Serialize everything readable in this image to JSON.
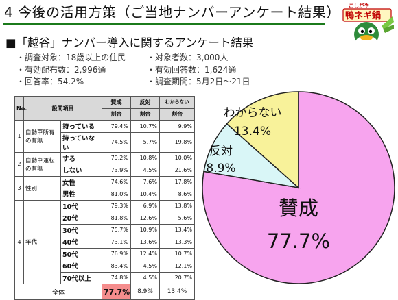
{
  "page": {
    "title": "4 今後の活用方策（ご当地ナンバーアンケート結果）",
    "subtitle": "■「越谷」ナンバー導入に関するアンケート結果",
    "logo": {
      "top_text": "こしがや",
      "main_text": "鴨ネギ鍋"
    }
  },
  "survey_info": {
    "left": [
      "調査対象：18歳以上の住民",
      "有効配布数：2,996通",
      "回答率：54.2%"
    ],
    "right": [
      "対象者数：3,000人",
      "有効回答数：1,624通",
      "調査期間：5月2日～21日"
    ]
  },
  "table": {
    "header": {
      "no": "No.",
      "item": "設問項目",
      "yes": "賛成",
      "no_vote": "反対",
      "unknown": "わからない",
      "ratio": "割合"
    },
    "groups": [
      {
        "no": "1",
        "question": "自動車所有の有無",
        "rows": [
          {
            "option": "持っている",
            "yes": "79.4%",
            "no": "10.7%",
            "unknown": "9.9%"
          },
          {
            "option": "持っていない",
            "yes": "74.5%",
            "no": "5.7%",
            "unknown": "19.8%"
          }
        ]
      },
      {
        "no": "2",
        "question": "自動車運転の有無",
        "rows": [
          {
            "option": "する",
            "yes": "79.2%",
            "no": "10.8%",
            "unknown": "10.0%"
          },
          {
            "option": "しない",
            "yes": "73.9%",
            "no": "4.5%",
            "unknown": "21.6%"
          }
        ]
      },
      {
        "no": "3",
        "question": "性別",
        "rows": [
          {
            "option": "女性",
            "yes": "74.6%",
            "no": "7.6%",
            "unknown": "17.8%"
          },
          {
            "option": "男性",
            "yes": "81.0%",
            "no": "10.4%",
            "unknown": "8.6%"
          }
        ]
      },
      {
        "no": "4",
        "question": "年代",
        "rows": [
          {
            "option": "10代",
            "yes": "79.3%",
            "no": "6.9%",
            "unknown": "13.8%"
          },
          {
            "option": "20代",
            "yes": "81.8%",
            "no": "12.6%",
            "unknown": "5.6%"
          },
          {
            "option": "30代",
            "yes": "75.7%",
            "no": "10.9%",
            "unknown": "13.4%"
          },
          {
            "option": "40代",
            "yes": "73.1%",
            "no": "13.6%",
            "unknown": "13.3%"
          },
          {
            "option": "50代",
            "yes": "76.9%",
            "no": "12.4%",
            "unknown": "10.7%"
          },
          {
            "option": "60代",
            "yes": "83.4%",
            "no": "4.5%",
            "unknown": "12.1%"
          },
          {
            "option": "70代以上",
            "yes": "74.8%",
            "no": "4.5%",
            "unknown": "20.7%"
          }
        ]
      }
    ],
    "total": {
      "label": "全体",
      "yes": "77.7%",
      "no": "8.9%",
      "unknown": "13.4%"
    }
  },
  "chart_data": {
    "type": "pie",
    "slices": [
      {
        "label": "賛成",
        "value": 77.7,
        "display": "77.7%",
        "color": "#f7a4ee"
      },
      {
        "label": "反対",
        "value": 8.9,
        "display": "8.9%",
        "color": "#d9f6f7"
      },
      {
        "label": "わからない",
        "value": 13.4,
        "display": "13.4%",
        "color": "#f8f29a"
      }
    ]
  }
}
